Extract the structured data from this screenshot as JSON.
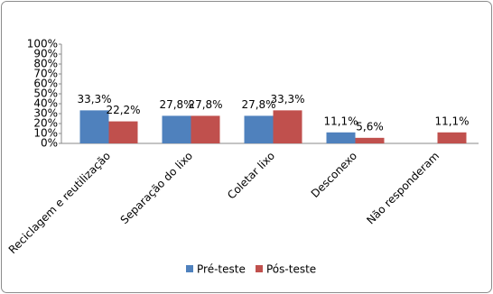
{
  "chart_data": {
    "type": "bar",
    "categories": [
      "Reciclagem e reutilização",
      "Separação do lixo",
      "Coletar lixo",
      "Desconexo",
      "Não responderam"
    ],
    "series": [
      {
        "name": "Pré-teste",
        "color": "#4f81bd",
        "values": [
          33.3,
          27.8,
          27.8,
          11.1,
          null
        ],
        "value_labels": [
          "33,3%",
          "27,8%",
          "27,8%",
          "11,1%",
          null
        ]
      },
      {
        "name": "Pós-teste",
        "color": "#c0504d",
        "values": [
          22.2,
          27.8,
          33.3,
          5.6,
          11.1
        ],
        "value_labels": [
          "22,2%",
          "27,8%",
          "33,3%",
          "5,6%",
          "11,1%"
        ]
      }
    ],
    "ylim": [
      0,
      100
    ],
    "yticks": [
      {
        "value": 0,
        "label": "0%"
      },
      {
        "value": 10,
        "label": "10%"
      },
      {
        "value": 20,
        "label": "20%"
      },
      {
        "value": 30,
        "label": "30%"
      },
      {
        "value": 40,
        "label": "40%"
      },
      {
        "value": 50,
        "label": "50%"
      },
      {
        "value": 60,
        "label": "60%"
      },
      {
        "value": 70,
        "label": "70%"
      },
      {
        "value": 80,
        "label": "80%"
      },
      {
        "value": 90,
        "label": "90%"
      },
      {
        "value": 100,
        "label": "100%"
      }
    ],
    "legend": "bottom"
  }
}
